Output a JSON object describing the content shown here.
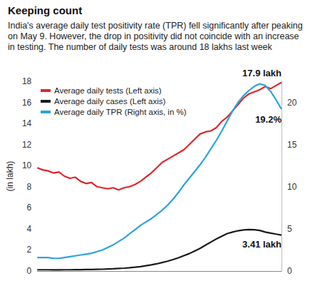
{
  "chart_data": {
    "type": "line",
    "title": "Keeping count",
    "subtitle": "India's average daily test positivity rate (TPR) fell significantly after peaking on May 9. However, the drop in positivity did not coincide with an increase in testing. The number of daily tests was around 18 lakhs last week",
    "y_label": "(in lakh)",
    "categories": [
      null,
      null,
      null,
      null,
      null,
      null,
      null,
      null,
      null,
      null,
      null,
      null,
      null,
      null,
      null,
      null,
      null,
      null,
      null,
      null,
      null,
      null,
      null,
      null,
      null,
      null,
      null,
      null,
      null,
      null,
      null,
      null,
      null,
      null,
      null,
      null,
      null,
      null,
      null,
      null,
      null,
      null,
      null,
      null,
      null,
      null
    ],
    "series": [
      {
        "name": "Average daily tests (Left axis)",
        "color": "#e0252b",
        "values": [
          9.8,
          9.6,
          9.5,
          9.3,
          9.4,
          9.0,
          8.8,
          8.9,
          8.5,
          8.3,
          8.4,
          8.0,
          7.9,
          7.8,
          7.9,
          7.7,
          7.9,
          8.0,
          8.2,
          8.5,
          8.9,
          9.3,
          9.8,
          10.3,
          10.6,
          10.9,
          11.2,
          11.5,
          12.0,
          12.5,
          13.0,
          13.2,
          13.3,
          13.6,
          14.2,
          14.6,
          15.2,
          15.8,
          16.4,
          16.8,
          17.0,
          17.2,
          17.5,
          17.3,
          17.6,
          17.9
        ],
        "value_labels": [
          null,
          null,
          null,
          null,
          null,
          null,
          null,
          null,
          null,
          null,
          null,
          null,
          null,
          null,
          null,
          null,
          null,
          null,
          null,
          null,
          null,
          null,
          null,
          null,
          null,
          null,
          null,
          null,
          null,
          null,
          null,
          null,
          null,
          null,
          null,
          null,
          null,
          null,
          null,
          null,
          null,
          null,
          null,
          null,
          null,
          "17.9 lakh"
        ]
      },
      {
        "name": "Average daily cases (Left axis)",
        "color": "#1a1a1a",
        "values": [
          0.12,
          0.12,
          0.12,
          0.11,
          0.11,
          0.12,
          0.12,
          0.13,
          0.13,
          0.14,
          0.15,
          0.16,
          0.17,
          0.19,
          0.21,
          0.24,
          0.27,
          0.31,
          0.36,
          0.42,
          0.5,
          0.58,
          0.68,
          0.8,
          0.93,
          1.08,
          1.25,
          1.45,
          1.65,
          1.9,
          2.15,
          2.45,
          2.75,
          3.05,
          3.3,
          3.55,
          3.7,
          3.82,
          3.9,
          3.93,
          3.92,
          3.85,
          3.7,
          3.6,
          3.5,
          3.41
        ],
        "value_labels": [
          null,
          null,
          null,
          null,
          null,
          null,
          null,
          null,
          null,
          null,
          null,
          null,
          null,
          null,
          null,
          null,
          null,
          null,
          null,
          null,
          null,
          null,
          null,
          null,
          null,
          null,
          null,
          null,
          null,
          null,
          null,
          null,
          null,
          null,
          null,
          null,
          null,
          null,
          null,
          null,
          null,
          null,
          null,
          null,
          null,
          "3.41 lakh"
        ]
      },
      {
        "name": "Average daily TPR (Right axis, in %)",
        "color": "#2aa3dc",
        "axis": "y2",
        "values": [
          1.6,
          1.6,
          1.6,
          1.5,
          1.5,
          1.6,
          1.7,
          1.8,
          1.9,
          2.0,
          2.1,
          2.3,
          2.5,
          2.8,
          3.1,
          3.5,
          3.9,
          4.4,
          4.9,
          5.4,
          5.8,
          6.2,
          6.7,
          7.2,
          7.8,
          8.5,
          9.3,
          10.2,
          11.0,
          11.8,
          12.6,
          13.5,
          14.5,
          15.5,
          16.6,
          17.8,
          19.0,
          20.0,
          20.8,
          21.4,
          21.9,
          22.2,
          22.0,
          21.3,
          20.3,
          19.2
        ],
        "value_labels": [
          null,
          null,
          null,
          null,
          null,
          null,
          null,
          null,
          null,
          null,
          null,
          null,
          null,
          null,
          null,
          null,
          null,
          null,
          null,
          null,
          null,
          null,
          null,
          null,
          null,
          null,
          null,
          null,
          null,
          null,
          null,
          null,
          null,
          null,
          null,
          null,
          null,
          null,
          null,
          null,
          null,
          null,
          null,
          null,
          null,
          "19.2%"
        ]
      }
    ],
    "ylim": [
      0,
      18
    ],
    "yticks": [
      0,
      2,
      4,
      6,
      8,
      10,
      12,
      14,
      16,
      18
    ],
    "y2lim": [
      0,
      22.5
    ],
    "y2ticks": [
      0,
      5,
      10,
      15,
      20
    ],
    "grid": false,
    "legend": "top-left",
    "tick_labels": "y"
  }
}
